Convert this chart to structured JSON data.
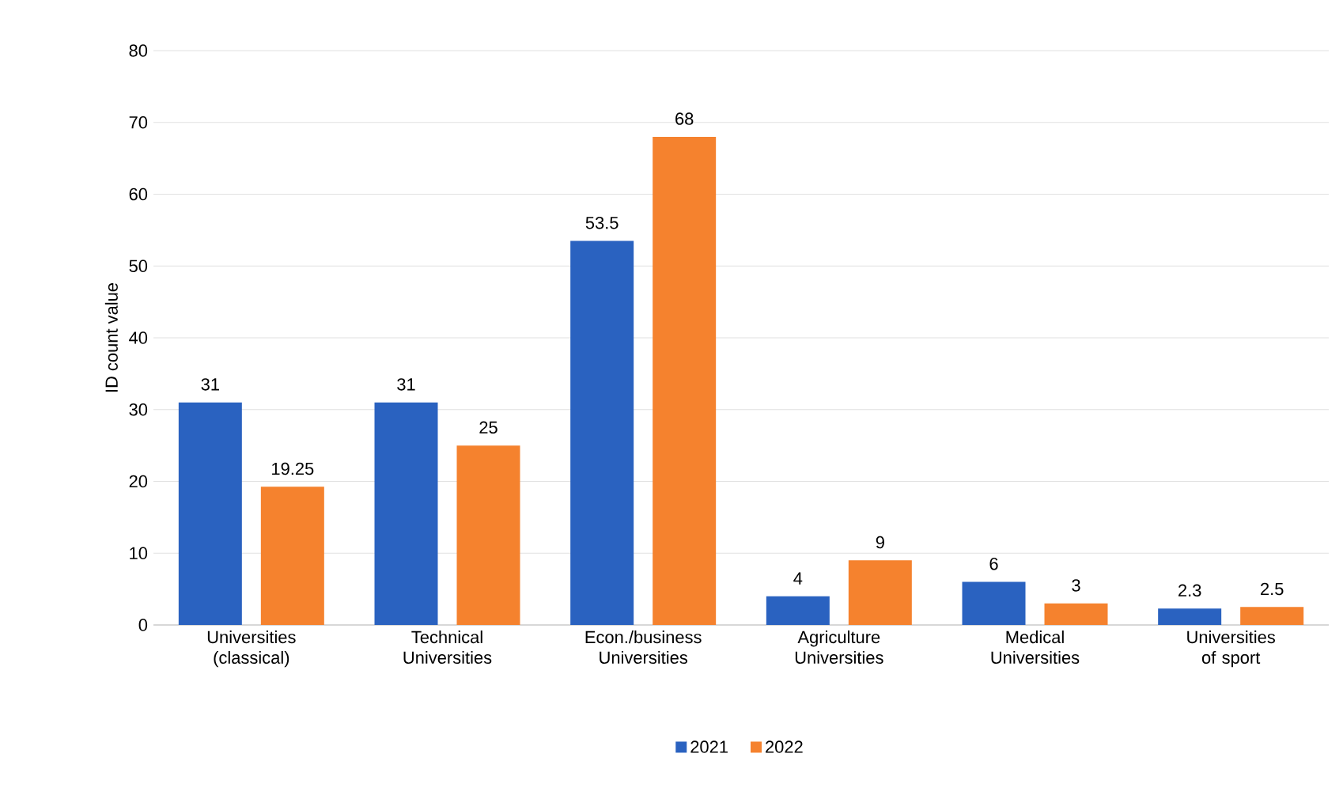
{
  "chart_data": {
    "type": "bar",
    "ylabel": "ID count value",
    "categories": [
      "Universities (classical)",
      "Technical Universities",
      "Econ./business Universities",
      "Agriculture Universities",
      "Medical Universities",
      "Universities of sport"
    ],
    "series": [
      {
        "name": "2021",
        "color": "#2a62c0",
        "values": [
          31,
          31,
          53.5,
          4,
          6,
          2.3
        ]
      },
      {
        "name": "2022",
        "color": "#f5822e",
        "values": [
          19.25,
          25,
          68,
          9,
          3,
          2.5
        ]
      }
    ],
    "ylim": [
      0,
      80
    ],
    "yticks": [
      0,
      10,
      20,
      30,
      40,
      50,
      60,
      70,
      80
    ],
    "grid": "y",
    "legend": "bottom",
    "data_labels": true
  }
}
